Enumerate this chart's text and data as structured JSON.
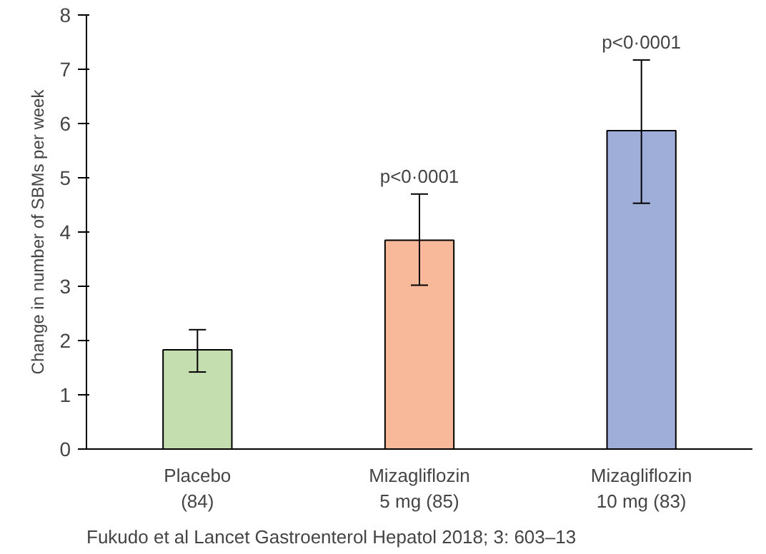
{
  "chart_data": {
    "type": "bar",
    "ylabel": "Change in number of SBMs per week",
    "categories": [
      "Placebo\n(84)",
      "Mizagliflozin\n5 mg (85)",
      "Mizagliflozin\n10 mg (83)"
    ],
    "values": [
      1.83,
      3.85,
      5.87
    ],
    "colors": [
      "#c5deaf",
      "#f8b89a",
      "#9eaed8"
    ],
    "errors": [
      [
        1.42,
        2.2
      ],
      [
        3.02,
        4.7
      ],
      [
        4.53,
        7.17
      ]
    ],
    "ylim": [
      0,
      8
    ],
    "yticks": [
      0,
      1,
      2,
      3,
      4,
      5,
      6,
      7,
      8
    ],
    "grid": false,
    "annotations": [
      {
        "text": "p<0·0001",
        "x": "Mizagliflozin\n5 mg (85)",
        "y": 4.7
      },
      {
        "text": "p<0·0001",
        "x": "Mizagliflozin\n10 mg (83)",
        "y": 7.17
      },
      "Fukudo et al Lancet Gastroenterol Hepatol 2018; 3: 603–13"
    ]
  }
}
